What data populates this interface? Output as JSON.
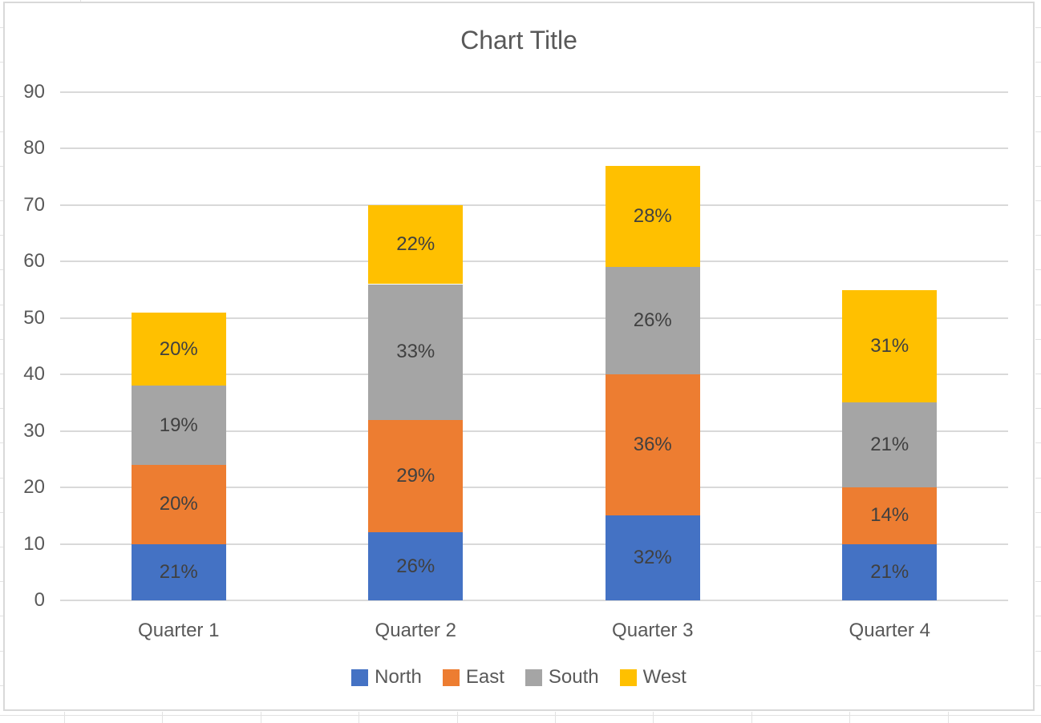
{
  "chart_data": {
    "type": "bar",
    "stacked": true,
    "title": "Chart Title",
    "categories": [
      "Quarter 1",
      "Quarter 2",
      "Quarter 3",
      "Quarter 4"
    ],
    "series": [
      {
        "name": "North",
        "color": "#4472C4",
        "values": [
          10,
          12,
          15,
          10
        ],
        "data_labels": [
          "21%",
          "26%",
          "32%",
          "21%"
        ]
      },
      {
        "name": "East",
        "color": "#ED7D31",
        "values": [
          14,
          20,
          25,
          10
        ],
        "data_labels": [
          "20%",
          "29%",
          "36%",
          "14%"
        ]
      },
      {
        "name": "South",
        "color": "#A5A5A5",
        "values": [
          14,
          24,
          19,
          15
        ],
        "data_labels": [
          "19%",
          "33%",
          "26%",
          "21%"
        ]
      },
      {
        "name": "West",
        "color": "#FFC000",
        "values": [
          13,
          14,
          18,
          20
        ],
        "data_labels": [
          "20%",
          "22%",
          "28%",
          "31%"
        ]
      }
    ],
    "y_axis": {
      "min": 0,
      "max": 90,
      "ticks": [
        0,
        10,
        20,
        30,
        40,
        50,
        60,
        70,
        80,
        90
      ]
    },
    "grid": true,
    "legend_position": "bottom"
  },
  "styles": {
    "title_color": "#595959",
    "axis_text_color": "#595959",
    "data_label_color": "#404040",
    "plot_gridline_color": "#D9D9D9",
    "chart_border_color": "#D9D9D9",
    "worksheet_gridline_color": "#E2E2E2",
    "background": "#FFFFFF"
  }
}
